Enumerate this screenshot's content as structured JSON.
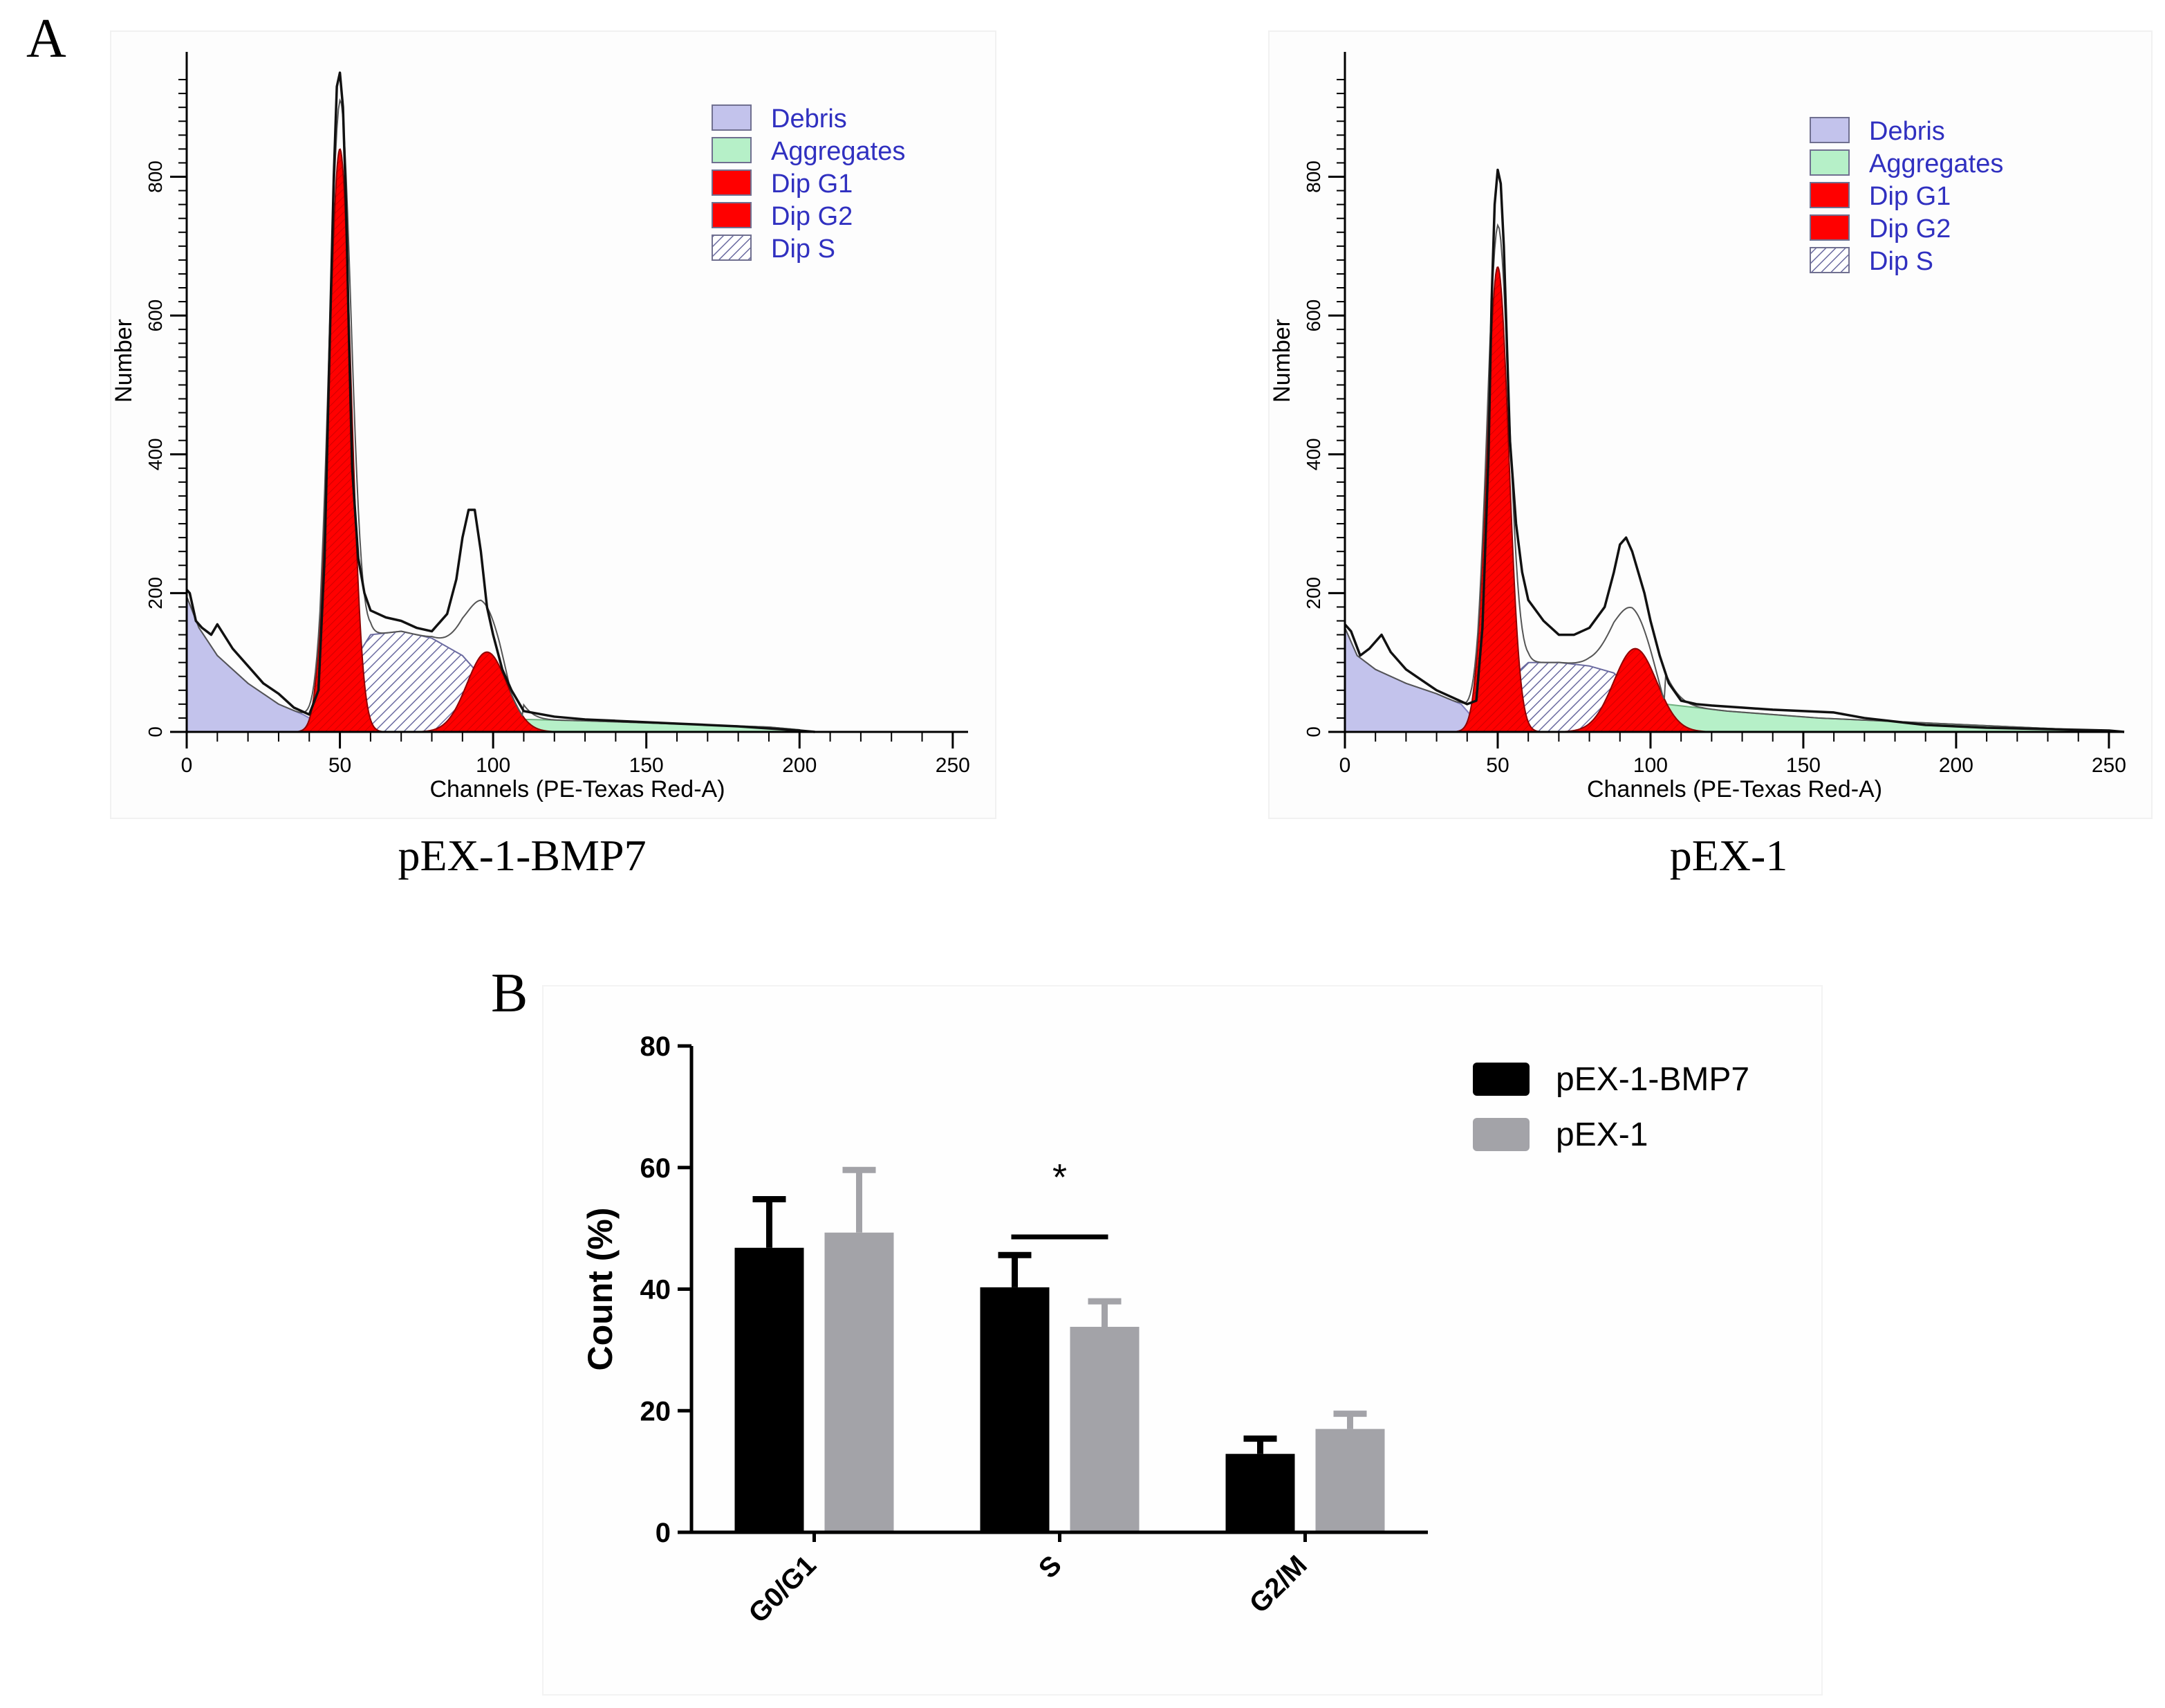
{
  "panel_labels": {
    "a": "A",
    "b": "B"
  },
  "chart_data": [
    {
      "type": "area",
      "sample": "pEX-1-BMP7",
      "xlabel": "Channels (PE-Texas Red-A)",
      "ylabel": "Number",
      "xlim": [
        0,
        255
      ],
      "ylim": [
        0,
        960
      ],
      "x_ticks": [
        0,
        50,
        100,
        150,
        200,
        250
      ],
      "y_ticks": [
        0,
        200,
        400,
        600,
        800
      ],
      "legend": [
        {
          "label": "Debris",
          "color": "#c3c3ec",
          "pattern": "solid"
        },
        {
          "label": "Aggregates",
          "color": "#b6f0c8",
          "pattern": "solid"
        },
        {
          "label": "Dip G1",
          "color": "#ff0000",
          "pattern": "solid"
        },
        {
          "label": "Dip G2",
          "color": "#ff0000",
          "pattern": "solid"
        },
        {
          "label": "Dip S",
          "color": "#ffffff",
          "pattern": "hatch"
        }
      ],
      "series": [
        {
          "name": "Debris",
          "x": [
            0,
            4,
            10,
            20,
            30,
            38,
            42,
            46
          ],
          "values": [
            195,
            150,
            110,
            70,
            40,
            25,
            15,
            0
          ]
        },
        {
          "name": "Aggregates",
          "x": [
            110,
            130,
            150,
            170,
            190,
            200
          ],
          "values": [
            18,
            16,
            13,
            10,
            7,
            3
          ]
        },
        {
          "name": "Dip G1",
          "center": 50,
          "peak": 840,
          "sd": 3.6
        },
        {
          "name": "Dip G2",
          "center": 98,
          "peak": 115,
          "sd": 6.5
        },
        {
          "name": "Dip S",
          "x": [
            44,
            50,
            60,
            70,
            80,
            90,
            96,
            102,
            106
          ],
          "values": [
            10,
            70,
            140,
            145,
            135,
            110,
            80,
            35,
            0
          ]
        },
        {
          "name": "Histogram",
          "x": [
            0,
            1,
            3,
            5,
            8,
            10,
            15,
            20,
            25,
            30,
            35,
            40,
            43,
            45,
            47,
            48,
            49,
            50,
            51,
            52,
            53,
            54,
            56,
            58,
            60,
            65,
            70,
            75,
            80,
            85,
            88,
            90,
            92,
            94,
            96,
            98,
            100,
            103,
            106,
            110,
            120,
            130,
            140,
            150,
            160,
            170,
            180,
            190,
            200,
            205
          ],
          "values": [
            205,
            200,
            160,
            150,
            140,
            155,
            120,
            95,
            70,
            55,
            35,
            25,
            60,
            250,
            620,
            800,
            930,
            950,
            900,
            760,
            560,
            380,
            250,
            200,
            175,
            165,
            160,
            150,
            145,
            170,
            220,
            280,
            320,
            320,
            260,
            180,
            140,
            90,
            60,
            30,
            22,
            18,
            16,
            14,
            12,
            10,
            8,
            5,
            2,
            0
          ]
        }
      ]
    },
    {
      "type": "area",
      "sample": "pEX-1",
      "xlabel": "Channels (PE-Texas Red-A)",
      "ylabel": "Number",
      "xlim": [
        0,
        255
      ],
      "ylim": [
        0,
        960
      ],
      "x_ticks": [
        0,
        50,
        100,
        150,
        200,
        250
      ],
      "y_ticks": [
        0,
        200,
        400,
        600,
        800
      ],
      "legend": [
        {
          "label": "Debris",
          "color": "#c3c3ec",
          "pattern": "solid"
        },
        {
          "label": "Aggregates",
          "color": "#b6f0c8",
          "pattern": "solid"
        },
        {
          "label": "Dip G1",
          "color": "#ff0000",
          "pattern": "solid"
        },
        {
          "label": "Dip G2",
          "color": "#ff0000",
          "pattern": "solid"
        },
        {
          "label": "Dip S",
          "color": "#ffffff",
          "pattern": "hatch"
        }
      ],
      "series": [
        {
          "name": "Debris",
          "x": [
            0,
            4,
            10,
            20,
            30,
            38,
            42,
            46
          ],
          "values": [
            150,
            110,
            90,
            70,
            55,
            40,
            20,
            0
          ]
        },
        {
          "name": "Aggregates",
          "x": [
            105,
            115,
            125,
            140,
            155,
            175,
            195,
            215,
            235,
            255
          ],
          "values": [
            40,
            35,
            30,
            25,
            20,
            16,
            12,
            8,
            4,
            0
          ]
        },
        {
          "name": "Dip G1",
          "center": 50,
          "peak": 670,
          "sd": 3.6
        },
        {
          "name": "Dip G2",
          "center": 95,
          "peak": 120,
          "sd": 7
        },
        {
          "name": "Dip S",
          "x": [
            44,
            50,
            60,
            70,
            80,
            88,
            94,
            100,
            104
          ],
          "values": [
            5,
            60,
            100,
            100,
            95,
            85,
            60,
            25,
            0
          ]
        },
        {
          "name": "Histogram",
          "x": [
            0,
            2,
            5,
            8,
            12,
            15,
            20,
            25,
            30,
            35,
            40,
            43,
            45,
            47,
            48,
            49,
            50,
            51,
            52,
            53,
            54,
            56,
            58,
            60,
            65,
            70,
            75,
            80,
            85,
            88,
            90,
            92,
            94,
            96,
            98,
            100,
            103,
            106,
            110,
            115,
            120,
            130,
            140,
            150,
            160,
            170,
            180,
            190,
            200,
            210,
            220,
            230,
            240,
            250,
            255
          ],
          "values": [
            155,
            145,
            110,
            120,
            140,
            115,
            90,
            75,
            60,
            50,
            40,
            45,
            150,
            400,
            620,
            760,
            810,
            790,
            700,
            560,
            420,
            300,
            230,
            190,
            160,
            140,
            140,
            150,
            180,
            230,
            270,
            280,
            260,
            230,
            200,
            160,
            110,
            70,
            45,
            40,
            38,
            35,
            32,
            30,
            28,
            20,
            15,
            10,
            8,
            6,
            5,
            4,
            3,
            2,
            0
          ]
        }
      ]
    },
    {
      "type": "bar",
      "title": "",
      "categories": [
        "G0/G1",
        "S",
        "G2/M"
      ],
      "series": [
        {
          "name": "pEX-1-BMP7",
          "color": "#000000",
          "values": [
            46.8,
            40.3,
            12.9
          ],
          "errors": [
            8.0,
            5.3,
            2.5
          ]
        },
        {
          "name": "pEX-1",
          "color": "#a3a3a8",
          "values": [
            49.3,
            33.8,
            17.0
          ],
          "errors": [
            10.3,
            4.2,
            2.5
          ]
        }
      ],
      "ylabel": "Count (%)",
      "xlabel": "",
      "ylim": [
        0,
        80
      ],
      "y_ticks": [
        0,
        20,
        40,
        60,
        80
      ],
      "significance": {
        "category": "S",
        "label": "*"
      },
      "legend_position": "top-right"
    }
  ]
}
